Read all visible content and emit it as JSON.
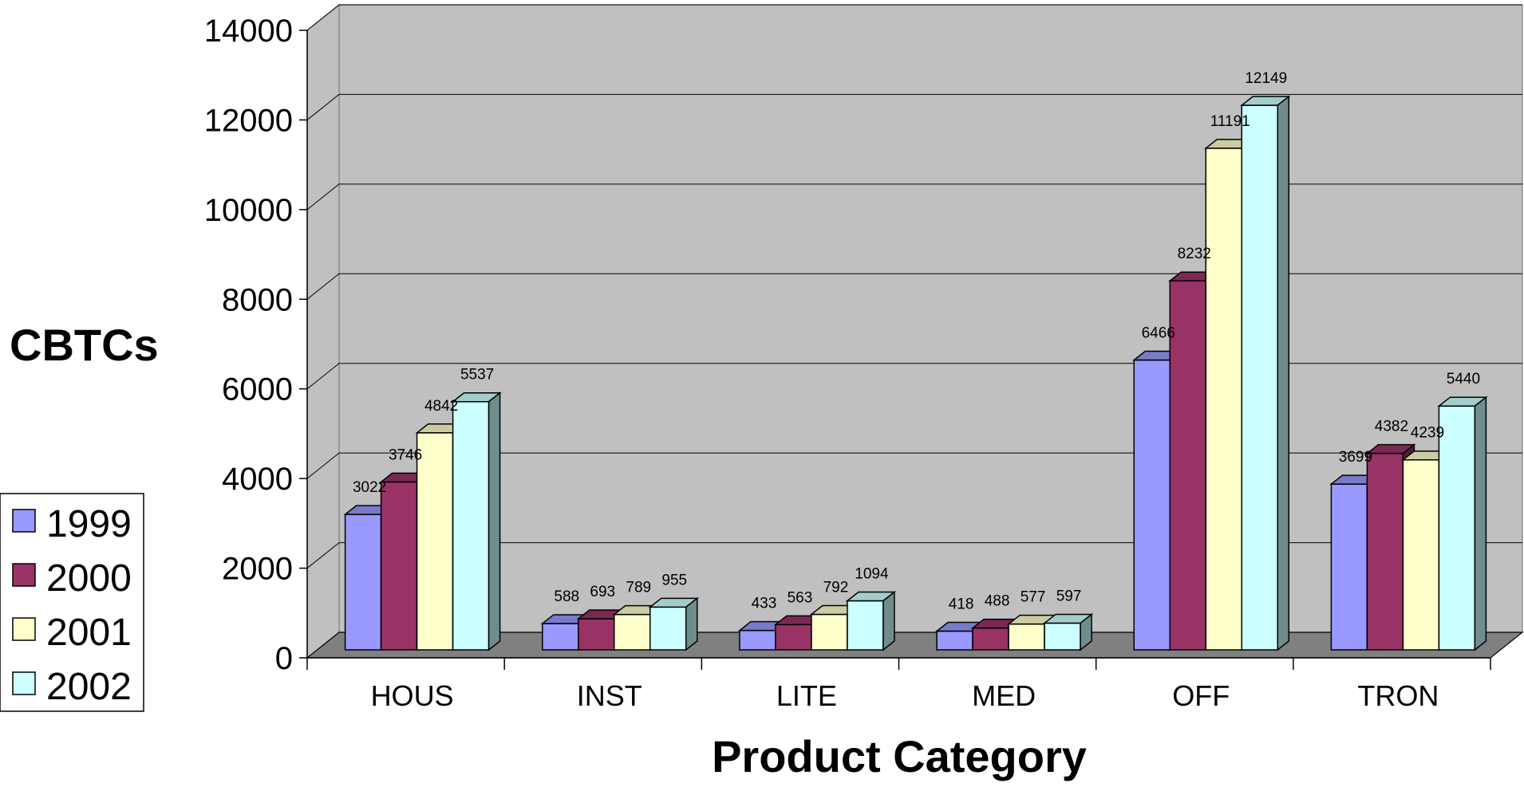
{
  "chart_data": {
    "type": "bar",
    "title": "",
    "xlabel": "Product Category",
    "ylabel": "CBTCs",
    "ylim": [
      0,
      14000
    ],
    "yticks": [
      0,
      2000,
      4000,
      6000,
      8000,
      10000,
      12000,
      14000
    ],
    "grid": true,
    "three_d": true,
    "legend_position": "left-bottom",
    "categories": [
      "HOUS",
      "INST",
      "LITE",
      "MED",
      "OFF",
      "TRON"
    ],
    "series": [
      {
        "name": "1999",
        "color": "#9999FF",
        "values": [
          3022,
          588,
          433,
          418,
          6466,
          3699
        ]
      },
      {
        "name": "2000",
        "color": "#993366",
        "values": [
          3746,
          693,
          563,
          488,
          8232,
          4382
        ]
      },
      {
        "name": "2001",
        "color": "#FFFFCC",
        "values": [
          4842,
          789,
          792,
          577,
          11191,
          4239
        ]
      },
      {
        "name": "2002",
        "color": "#CCFFFF",
        "values": [
          5537,
          955,
          1094,
          597,
          12149,
          5440
        ]
      }
    ],
    "wall_color": "#C0C0C0",
    "floor_color": "#808080"
  }
}
